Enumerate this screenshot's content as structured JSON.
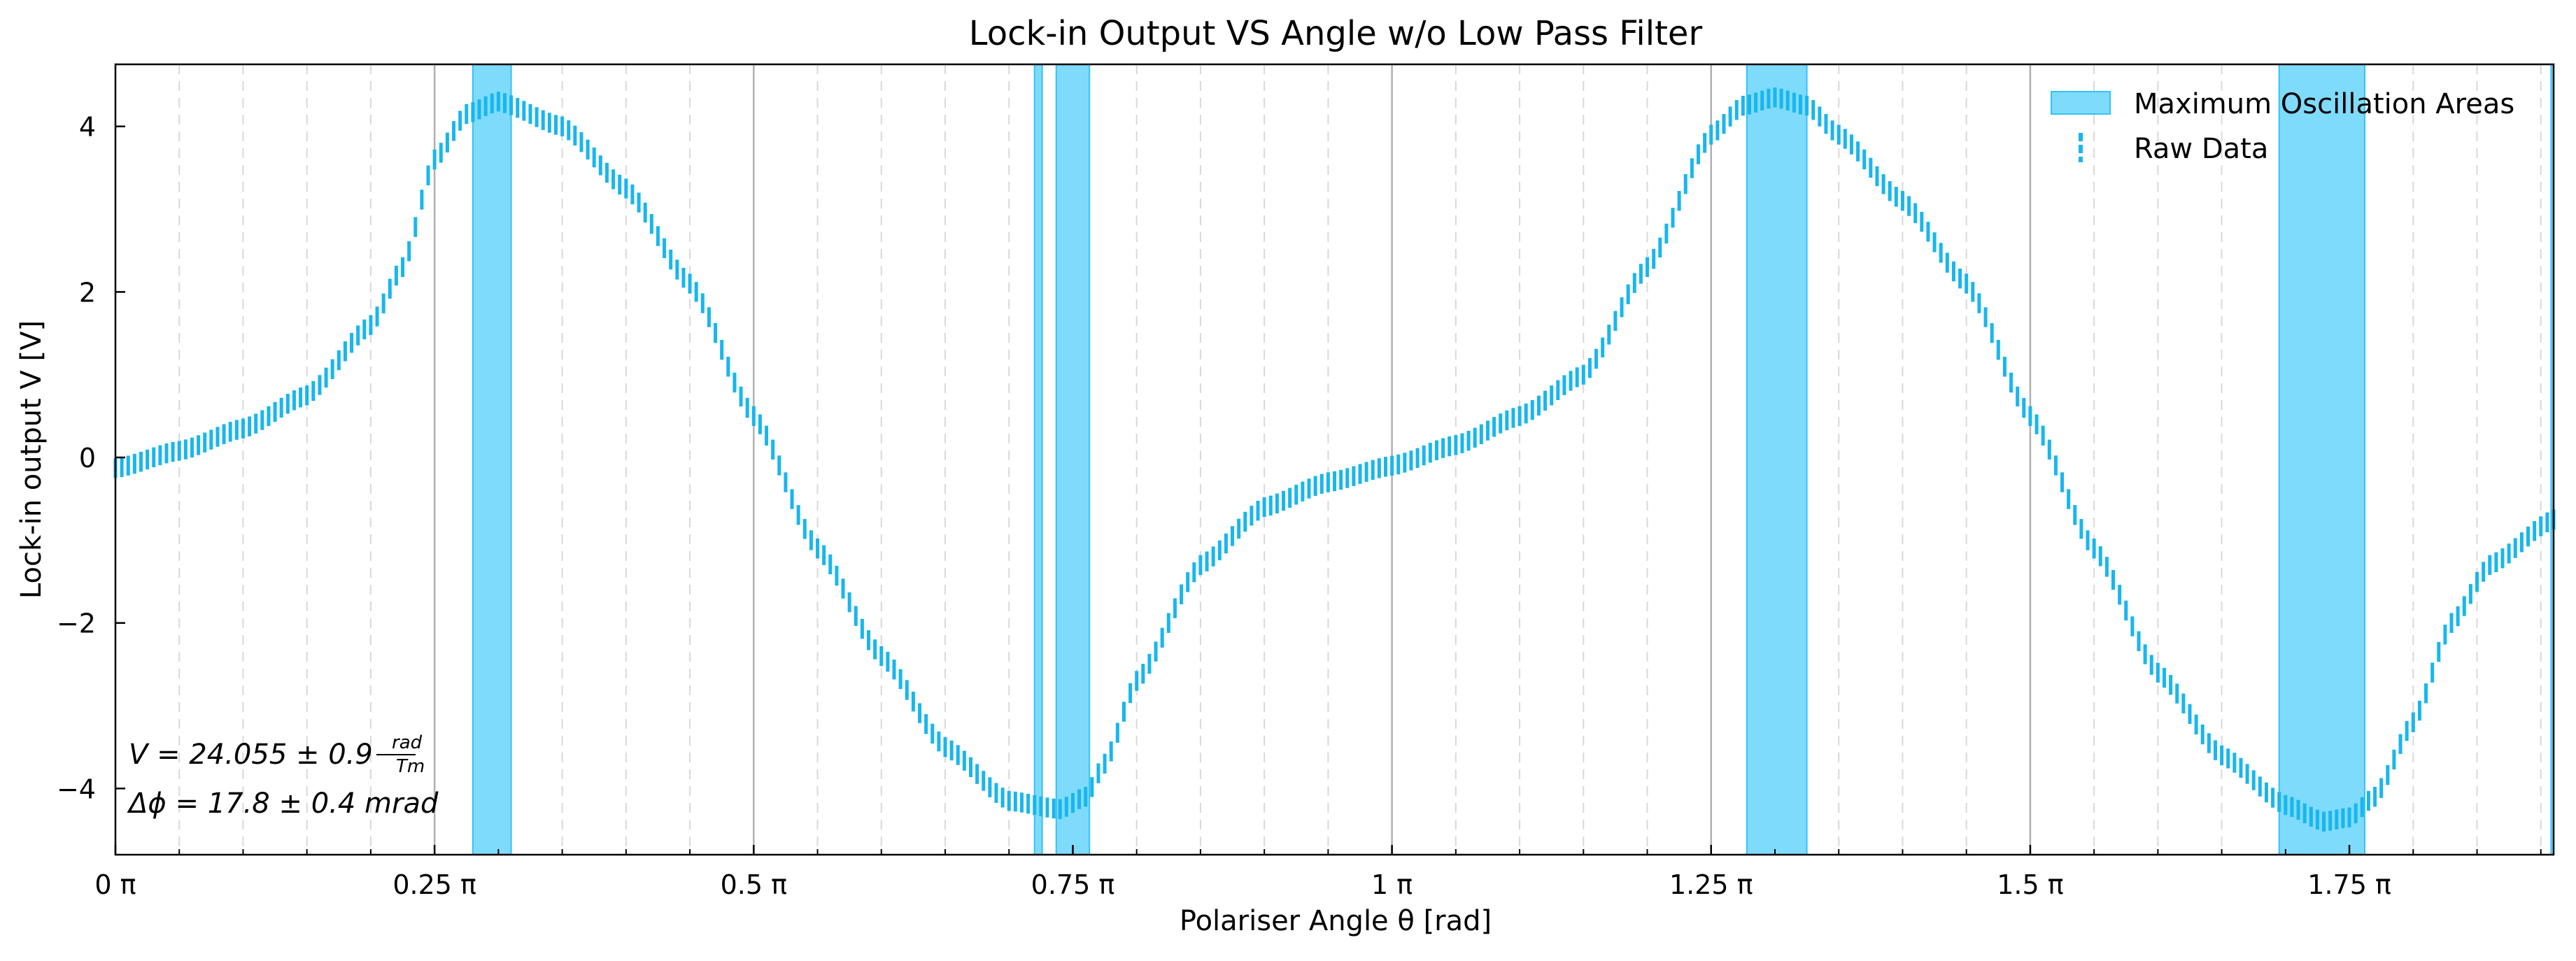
{
  "chart_data": {
    "type": "line",
    "title": "Lock-in Output VS Angle w/o Low Pass Filter",
    "xlabel": "Polariser Angle θ [rad]",
    "ylabel": "Lock-in output V [V]",
    "xlim": [
      0,
      1.91
    ],
    "ylim": [
      -4.8,
      4.75
    ],
    "x_ticks": [
      {
        "value": 0,
        "label": "0 π"
      },
      {
        "value": 0.25,
        "label": "0.25 π"
      },
      {
        "value": 0.5,
        "label": "0.5 π"
      },
      {
        "value": 0.75,
        "label": "0.75 π"
      },
      {
        "value": 1.0,
        "label": "1 π"
      },
      {
        "value": 1.25,
        "label": "1.25 π"
      },
      {
        "value": 1.5,
        "label": "1.5 π"
      },
      {
        "value": 1.75,
        "label": "1.75 π"
      }
    ],
    "y_ticks": [
      {
        "value": -4,
        "label": "−4"
      },
      {
        "value": -2,
        "label": "−2"
      },
      {
        "value": 0,
        "label": "0"
      },
      {
        "value": 2,
        "label": "2"
      },
      {
        "value": 4,
        "label": "4"
      }
    ],
    "x_unit": "π rad",
    "grid": "vertical lines: solid grey at every 0.25π, dashed light grey at every 0.05π",
    "legend": {
      "placement": "top-right",
      "entries": [
        {
          "label": "Maximum Oscillation Areas",
          "kind": "patch",
          "color": "#7fdbfb"
        },
        {
          "label": "Raw Data",
          "kind": "errorbar",
          "color": "#18b6ef"
        }
      ]
    },
    "shaded_regions": [
      {
        "x0": 0.28,
        "x1": 0.31
      },
      {
        "x0": 0.72,
        "x1": 0.726
      },
      {
        "x0": 0.737,
        "x1": 0.763
      },
      {
        "x0": 1.278,
        "x1": 1.325
      },
      {
        "x0": 1.695,
        "x1": 1.762
      },
      {
        "x0": 1.908,
        "x1": 1.91
      }
    ],
    "series": [
      {
        "name": "Raw Data",
        "points": [
          [
            0.0,
            -0.13
          ],
          [
            0.05,
            0.08
          ],
          [
            0.1,
            0.35
          ],
          [
            0.15,
            0.75
          ],
          [
            0.2,
            1.6
          ],
          [
            0.225,
            2.3
          ],
          [
            0.25,
            3.6
          ],
          [
            0.275,
            4.15
          ],
          [
            0.3,
            4.3
          ],
          [
            0.35,
            4.0
          ],
          [
            0.4,
            3.25
          ],
          [
            0.45,
            2.1
          ],
          [
            0.5,
            0.5
          ],
          [
            0.55,
            -1.1
          ],
          [
            0.6,
            -2.4
          ],
          [
            0.65,
            -3.5
          ],
          [
            0.7,
            -4.15
          ],
          [
            0.74,
            -4.25
          ],
          [
            0.76,
            -4.1
          ],
          [
            0.775,
            -3.7
          ],
          [
            0.8,
            -2.7
          ],
          [
            0.85,
            -1.3
          ],
          [
            0.9,
            -0.6
          ],
          [
            0.95,
            -0.3
          ],
          [
            1.0,
            -0.1
          ],
          [
            1.05,
            0.15
          ],
          [
            1.1,
            0.5
          ],
          [
            1.15,
            1.0
          ],
          [
            1.2,
            2.3
          ],
          [
            1.25,
            3.9
          ],
          [
            1.275,
            4.25
          ],
          [
            1.3,
            4.35
          ],
          [
            1.325,
            4.25
          ],
          [
            1.35,
            3.9
          ],
          [
            1.4,
            3.1
          ],
          [
            1.45,
            2.1
          ],
          [
            1.5,
            0.5
          ],
          [
            1.55,
            -1.1
          ],
          [
            1.6,
            -2.6
          ],
          [
            1.65,
            -3.6
          ],
          [
            1.7,
            -4.2
          ],
          [
            1.73,
            -4.4
          ],
          [
            1.75,
            -4.35
          ],
          [
            1.77,
            -4.1
          ],
          [
            1.8,
            -3.2
          ],
          [
            1.83,
            -2.0
          ],
          [
            1.86,
            -1.3
          ],
          [
            1.91,
            -0.75
          ]
        ],
        "error": 0.12
      }
    ]
  },
  "annotations": {
    "velocity_prefix": "V = 24.055 ± 0.9 ",
    "velocity_unit_num": "rad",
    "velocity_unit_den": "Tm",
    "phase": "Δϕ = 17.8 ± 0.4 mrad"
  },
  "colors": {
    "data": "#18b6ef",
    "band_fill": "#7fdbfb",
    "band_edge": "#33c3f5",
    "grid_major": "#b0b0b0",
    "grid_minor": "#d9d9d9"
  }
}
